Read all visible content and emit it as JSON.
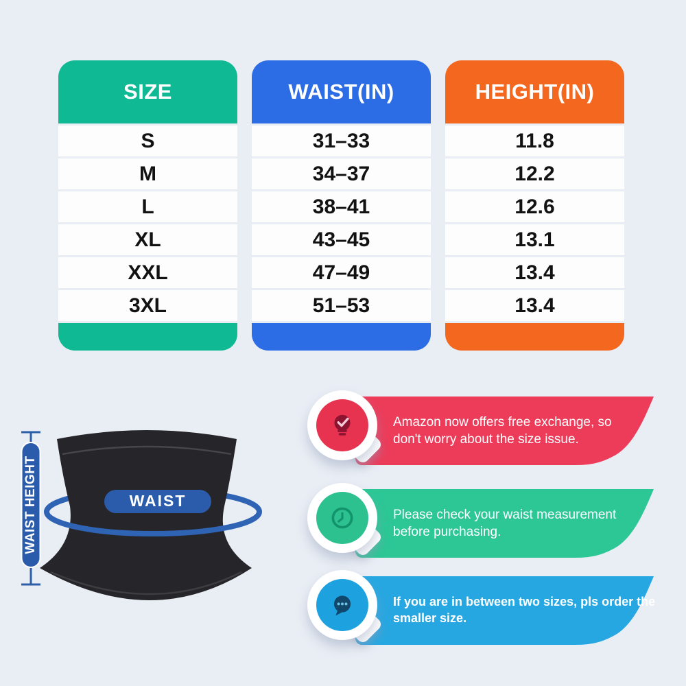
{
  "page": {
    "background_color": "#e9edf4"
  },
  "size_table": {
    "columns": [
      {
        "header": "SIZE",
        "color": "#0eb994",
        "values": [
          "S",
          "M",
          "L",
          "XL",
          "XXL",
          "3XL"
        ]
      },
      {
        "header": "WAIST(IN)",
        "color": "#2c6ce5",
        "values": [
          "31–33",
          "34–37",
          "38–41",
          "43–45",
          "47–49",
          "51–53"
        ]
      },
      {
        "header": "HEIGHT(IN)",
        "color": "#f4671e",
        "values": [
          "11.8",
          "12.2",
          "12.6",
          "13.1",
          "13.4",
          "13.4"
        ]
      }
    ]
  },
  "diagram": {
    "waist_label": "WAIST",
    "waist_height_label": "WAIST HEIGHT",
    "label_color": "#2b5cab",
    "ring_color": "#2f63b4",
    "garment_color": "#26262a"
  },
  "callouts": [
    {
      "icon": "lightbulb-check-icon",
      "banner_color": "#ec3c5a",
      "circle_color": "#e73350",
      "text": "Amazon now offers free exchange, so don't worry about the size issue."
    },
    {
      "icon": "clock-icon",
      "banner_color": "#2cc795",
      "circle_color": "#2cc18e",
      "text": "Please check your waist measurement before purchasing."
    },
    {
      "icon": "chat-dots-icon",
      "banner_color": "#27a7e1",
      "circle_color": "#1ea2df",
      "text": "If you are in between two sizes, pls order the smaller size."
    }
  ],
  "chart_data": {
    "type": "table",
    "title": "Waist trainer size chart",
    "columns": [
      "SIZE",
      "WAIST(IN)",
      "HEIGHT(IN)"
    ],
    "rows": [
      [
        "S",
        "31–33",
        "11.8"
      ],
      [
        "M",
        "34–37",
        "12.2"
      ],
      [
        "L",
        "38–41",
        "12.6"
      ],
      [
        "XL",
        "43–45",
        "13.1"
      ],
      [
        "XXL",
        "47–49",
        "13.4"
      ],
      [
        "3XL",
        "51–53",
        "13.4"
      ]
    ]
  }
}
